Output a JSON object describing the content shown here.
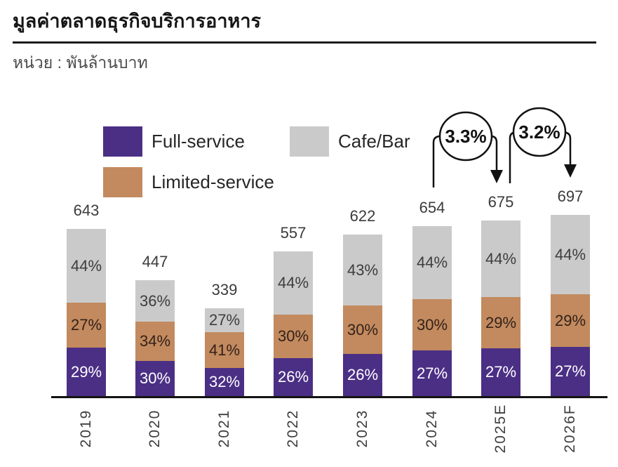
{
  "header": {
    "title": "มูลค่าตลาดธุรกิจบริการอาหาร",
    "unit": "หน่วย : พันล้านบาท"
  },
  "chart_data": {
    "type": "bar",
    "stacked": true,
    "title": "มูลค่าตลาดธุรกิจบริการอาหาร",
    "unit_label": "หน่วย : พันล้านบาท",
    "grid": false,
    "legend_position": "top",
    "categories": [
      "2019",
      "2020",
      "2021",
      "2022",
      "2023",
      "2024",
      "2025E",
      "2026F"
    ],
    "totals": [
      643,
      447,
      339,
      557,
      622,
      654,
      675,
      697
    ],
    "series": [
      {
        "name": "Full-service",
        "color": "#4B2F85",
        "label_color": "#FFFFFF",
        "pct": [
          29,
          30,
          32,
          26,
          26,
          27,
          27,
          27
        ]
      },
      {
        "name": "Limited-service",
        "color": "#C28A5E",
        "label_color": "#33211A",
        "pct": [
          27,
          34,
          41,
          30,
          30,
          30,
          29,
          29
        ]
      },
      {
        "name": "Cafe/Bar",
        "color": "#CBCACA",
        "label_color": "#3D3D3D",
        "pct": [
          44,
          36,
          27,
          44,
          43,
          44,
          44,
          44
        ]
      }
    ],
    "annotations": [
      {
        "label": "3.3%",
        "from": "2024",
        "to": "2025E"
      },
      {
        "label": "3.2%",
        "from": "2025E",
        "to": "2026F"
      }
    ]
  }
}
